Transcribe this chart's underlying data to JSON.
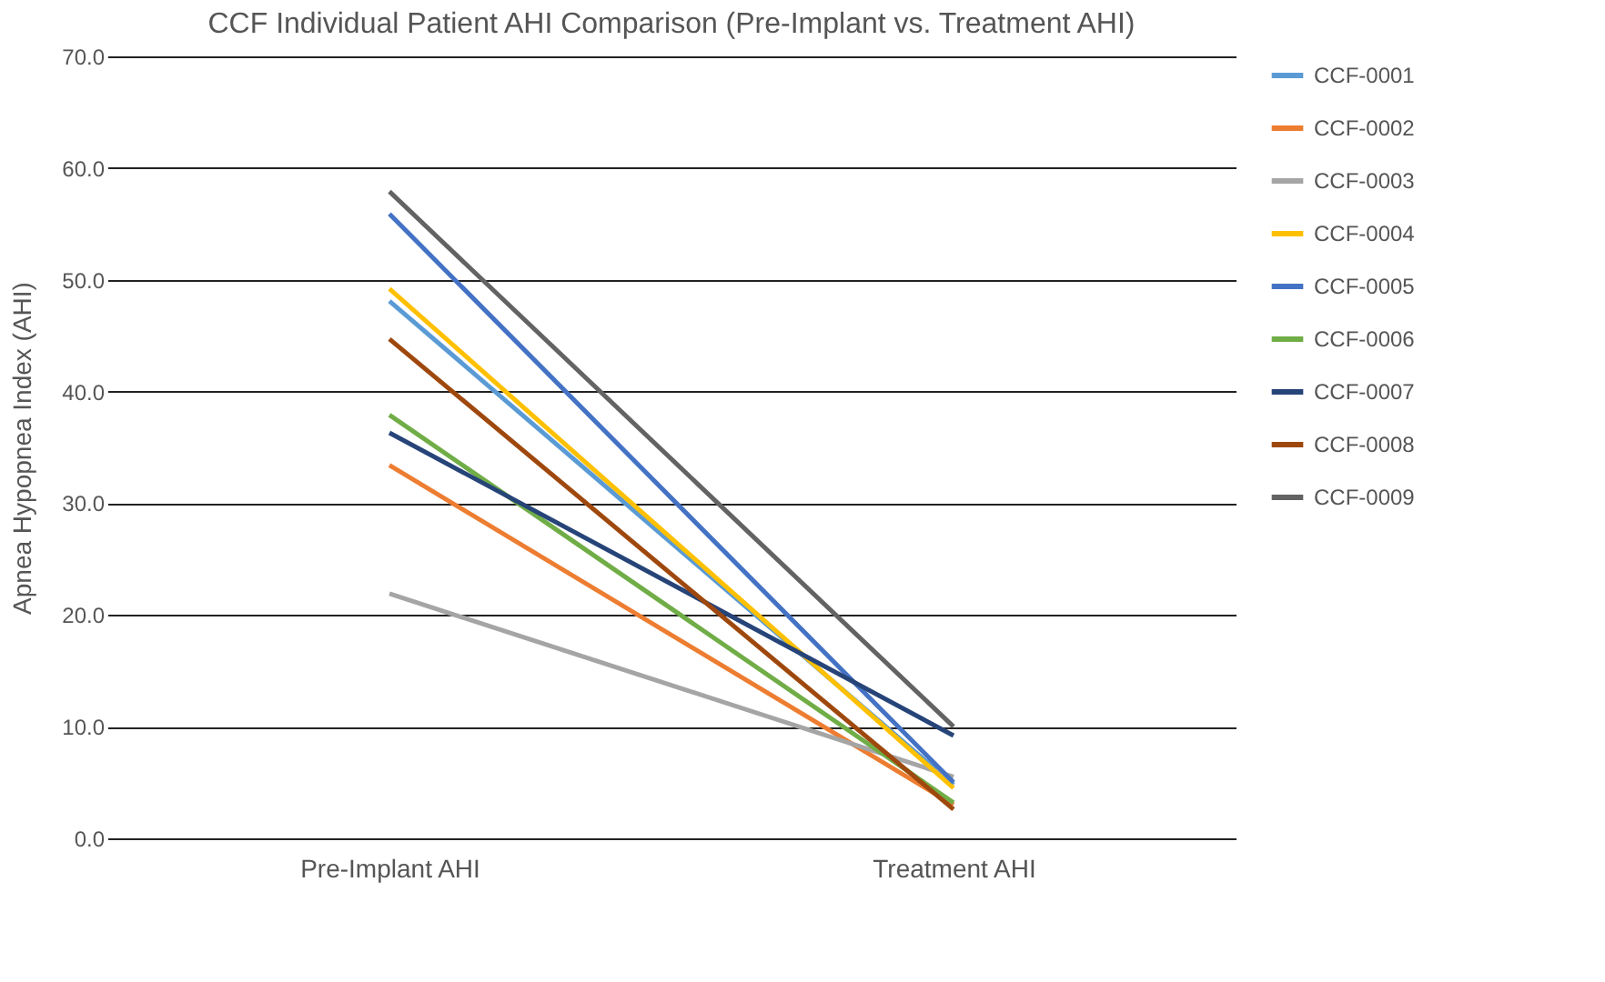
{
  "chart_data": {
    "type": "line",
    "title": "CCF Individual Patient AHI Comparison  (Pre-Implant vs. Treatment AHI)",
    "ylabel": "Apnea Hypopnea Index (AHI)",
    "categories": [
      "Pre-Implant AHI",
      "Treatment AHI"
    ],
    "series": [
      {
        "name": "CCF-0001",
        "color": "#5b9bd5",
        "values": [
          48.1,
          4.8
        ]
      },
      {
        "name": "CCF-0002",
        "color": "#ed7d31",
        "values": [
          33.4,
          3.0
        ]
      },
      {
        "name": "CCF-0003",
        "color": "#a5a5a5",
        "values": [
          21.9,
          5.5
        ]
      },
      {
        "name": "CCF-0004",
        "color": "#ffc000",
        "values": [
          49.2,
          4.5
        ]
      },
      {
        "name": "CCF-0005",
        "color": "#4472c4",
        "values": [
          55.9,
          5.0
        ]
      },
      {
        "name": "CCF-0006",
        "color": "#70ad47",
        "values": [
          37.9,
          3.2
        ]
      },
      {
        "name": "CCF-0007",
        "color": "#264478",
        "values": [
          36.3,
          9.2
        ]
      },
      {
        "name": "CCF-0008",
        "color": "#9e480e",
        "values": [
          44.7,
          2.6
        ]
      },
      {
        "name": "CCF-0009",
        "color": "#636363",
        "values": [
          57.9,
          10.0
        ]
      }
    ],
    "ylim": [
      0,
      70
    ],
    "yticks": [
      {
        "value": 0,
        "label": "0.0"
      },
      {
        "value": 10,
        "label": "10.0"
      },
      {
        "value": 20,
        "label": "20.0"
      },
      {
        "value": 30,
        "label": "30.0"
      },
      {
        "value": 40,
        "label": "40.0"
      },
      {
        "value": 50,
        "label": "50.0"
      },
      {
        "value": 60,
        "label": "60.0"
      },
      {
        "value": 70,
        "label": "70.0"
      }
    ],
    "grid": "y",
    "legend": "right",
    "marker": "none",
    "line_style": "solid"
  }
}
